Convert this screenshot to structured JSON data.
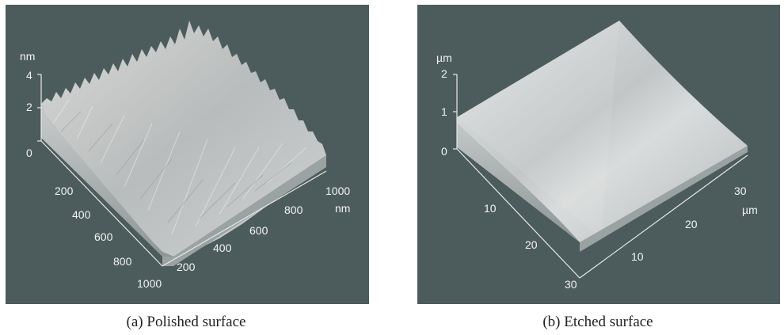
{
  "figure": {
    "panels": [
      {
        "id": "a",
        "caption": "(a) Polished surface",
        "z_unit": "nm",
        "z_ticks": [
          "0",
          "2",
          "4"
        ],
        "left_axis_ticks": [
          "200",
          "400",
          "600",
          "800",
          "1000"
        ],
        "right_axis_ticks": [
          "200",
          "400",
          "600",
          "800",
          "1000"
        ],
        "right_axis_unit": "nm"
      },
      {
        "id": "b",
        "caption": "(b) Etched surface",
        "z_unit": "µm",
        "z_ticks": [
          "0",
          "1",
          "2"
        ],
        "left_axis_ticks": [
          "10",
          "20",
          "30"
        ],
        "right_axis_ticks": [
          "10",
          "20",
          "30"
        ],
        "right_axis_unit": "µm"
      }
    ]
  }
}
